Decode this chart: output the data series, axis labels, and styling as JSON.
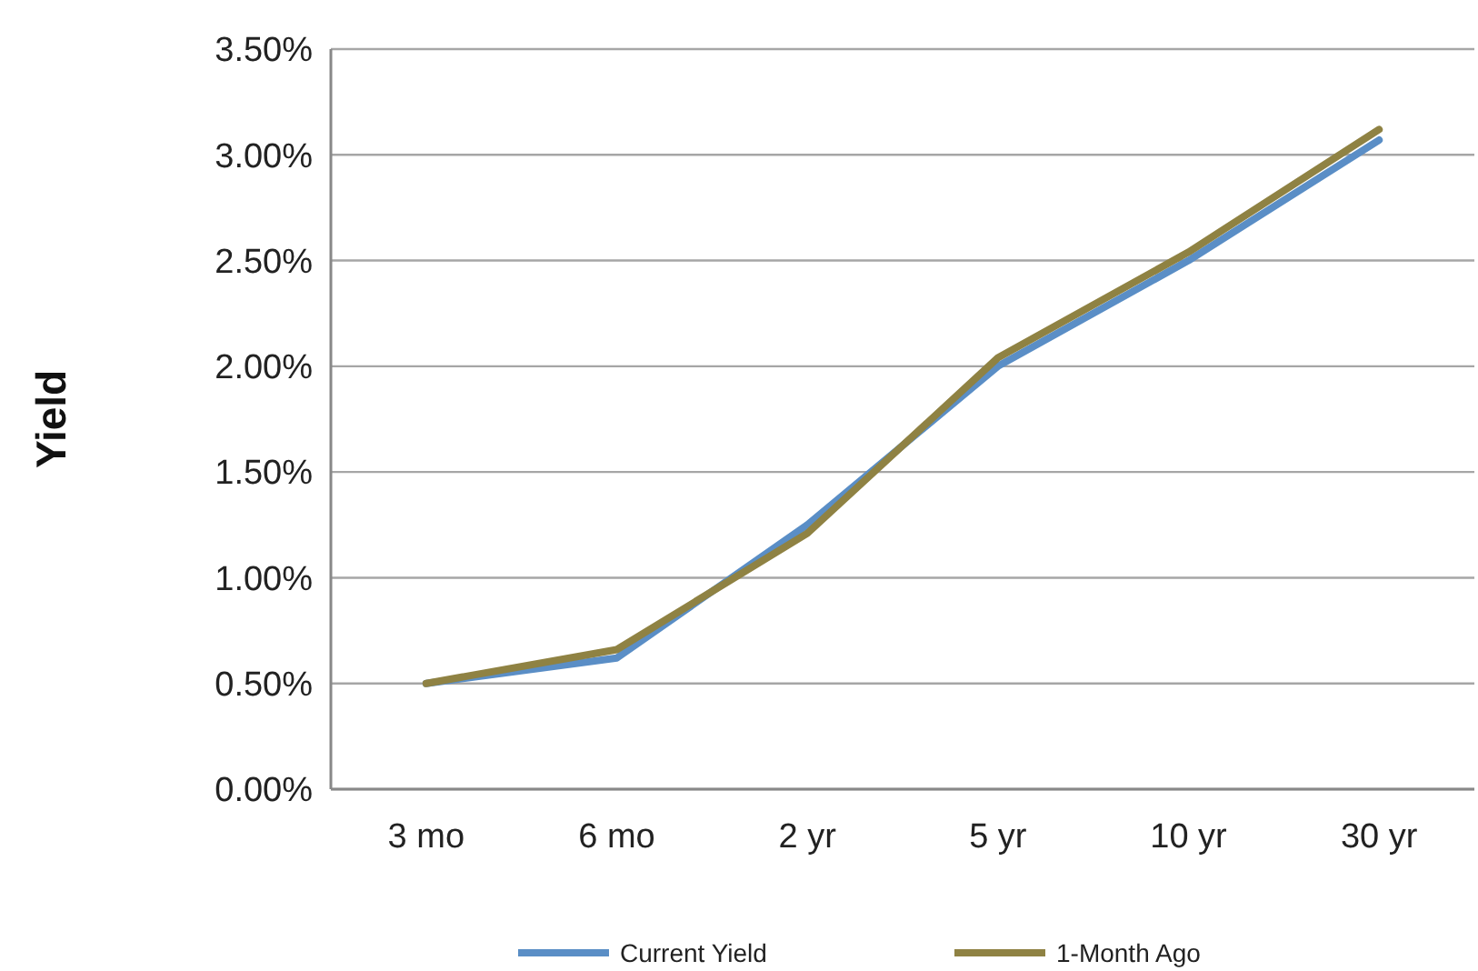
{
  "chart_data": {
    "type": "line",
    "ylabel": "Yield",
    "categories": [
      "3 mo",
      "6 mo",
      "2 yr",
      "5 yr",
      "10 yr",
      "30 yr"
    ],
    "series": [
      {
        "name": "Current Yield",
        "color": "#5a8ec6",
        "values": [
          0.5,
          0.62,
          1.25,
          2.0,
          2.5,
          3.07
        ]
      },
      {
        "name": "1-Month Ago",
        "color": "#8f8243",
        "values": [
          0.5,
          0.66,
          1.21,
          2.04,
          2.54,
          3.12
        ]
      }
    ],
    "ylim": [
      0,
      3.5
    ],
    "yticks": [
      {
        "value": 0,
        "label": "0.00%"
      },
      {
        "value": 0.5,
        "label": "0.50%"
      },
      {
        "value": 1,
        "label": "1.00%"
      },
      {
        "value": 1.5,
        "label": "1.50%"
      },
      {
        "value": 2,
        "label": "2.00%"
      },
      {
        "value": 2.5,
        "label": "2.50%"
      },
      {
        "value": 3,
        "label": "3.00%"
      },
      {
        "value": 3.5,
        "label": "3.50%"
      }
    ],
    "grid": "y",
    "legend": "bottom",
    "marker": "none",
    "line_style": "solid"
  }
}
